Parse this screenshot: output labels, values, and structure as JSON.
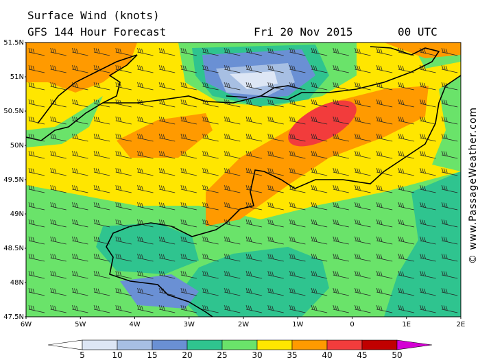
{
  "header": {
    "title": "Surface Wind (knots)",
    "subtitle": "GFS 144 Hour Forecast",
    "date": "Fri 20 Nov 2015",
    "time": "00 UTC"
  },
  "lat_labels": [
    "51.5N",
    "51N",
    "50.5N",
    "50N",
    "49.5N",
    "49N",
    "48.5N",
    "48N",
    "47.5N"
  ],
  "lon_labels": [
    "6W",
    "5W",
    "4W",
    "3W",
    "2W",
    "1W",
    "0",
    "1E",
    "2E"
  ],
  "colorbar": {
    "labels": [
      "5",
      "10",
      "15",
      "20",
      "25",
      "30",
      "35",
      "40",
      "45",
      "50"
    ],
    "colors": [
      "#ffffff",
      "#dde6f5",
      "#a7bfe3",
      "#6a90d4",
      "#2fc48f",
      "#6ae36a",
      "#ffe600",
      "#ff9a00",
      "#f23c3c",
      "#c00000",
      "#d400d4"
    ]
  },
  "credit": "© www.PassageWeather.com"
}
